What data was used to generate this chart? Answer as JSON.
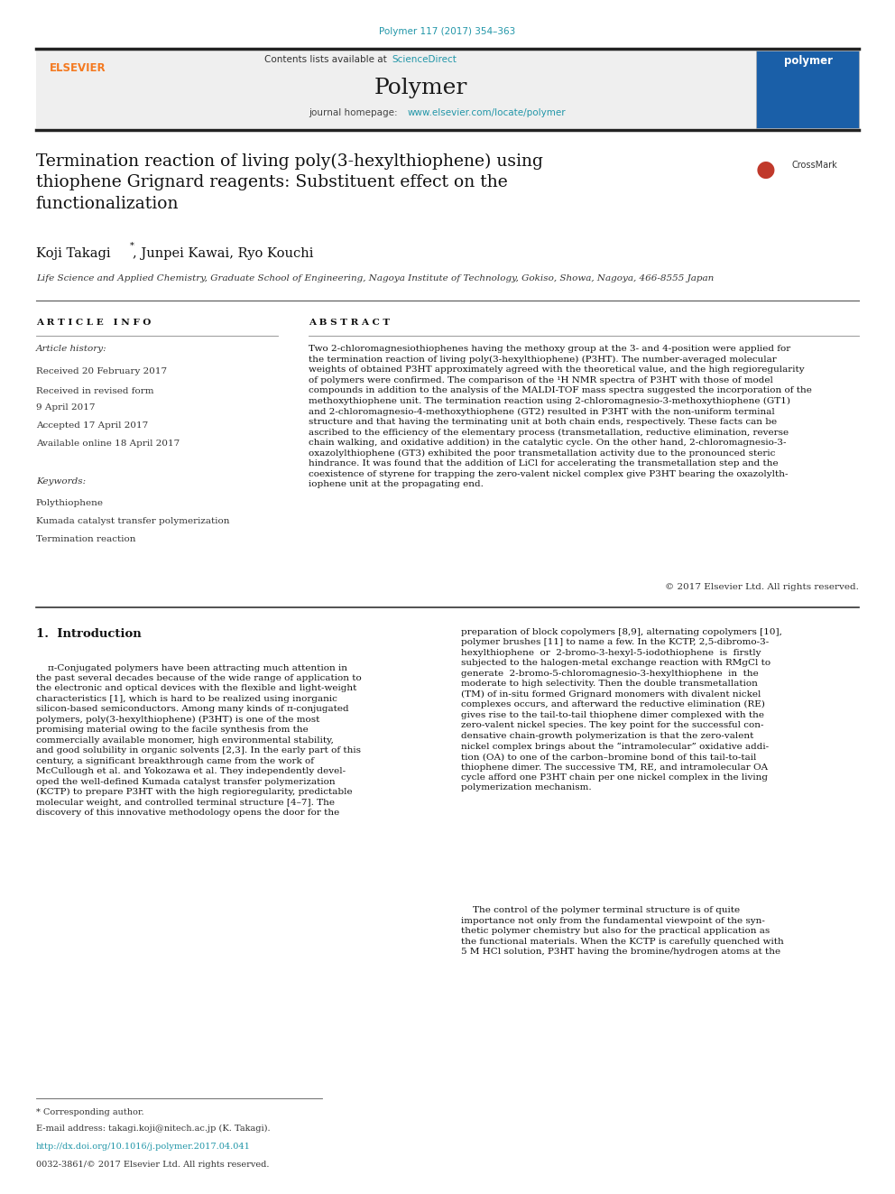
{
  "page_width": 9.92,
  "page_height": 13.23,
  "bg_color": "#ffffff",
  "journal_ref": "Polymer 117 (2017) 354–363",
  "journal_ref_color": "#2196a8",
  "journal_name": "Polymer",
  "contents_text": "Contents lists available at ",
  "sciencedirect_text": "ScienceDirect",
  "sciencedirect_color": "#2196a8",
  "homepage_text": "journal homepage: ",
  "homepage_url": "www.elsevier.com/locate/polymer",
  "homepage_color": "#2196a8",
  "header_bg": "#efefef",
  "title": "Termination reaction of living poly(3-hexylthiophene) using\nthiophene Grignard reagents: Substituent effect on the\nfunctionalization",
  "authors": "Koji Takagi",
  "authors2": ", Junpei Kawai, Ryo Kouchi",
  "affiliation": "Life Science and Applied Chemistry, Graduate School of Engineering, Nagoya Institute of Technology, Gokiso, Showa, Nagoya, 466-8555 Japan",
  "article_info_title": "A R T I C L E   I N F O",
  "history_title": "Article history:",
  "received": "Received 20 February 2017",
  "received_revised": "Received in revised form",
  "april9": "9 April 2017",
  "accepted": "Accepted 17 April 2017",
  "available": "Available online 18 April 2017",
  "keywords_title": "Keywords:",
  "keyword1": "Polythiophene",
  "keyword2": "Kumada catalyst transfer polymerization",
  "keyword3": "Termination reaction",
  "abstract_title": "A B S T R A C T",
  "abstract_text": "Two 2-chloromagnesiothiophenes having the methoxy group at the 3- and 4-position were applied for\nthe termination reaction of living poly(3-hexylthiophene) (P3HT). The number-averaged molecular\nweights of obtained P3HT approximately agreed with the theoretical value, and the high regioregularity\nof polymers were confirmed. The comparison of the ¹H NMR spectra of P3HT with those of model\ncompounds in addition to the analysis of the MALDI-TOF mass spectra suggested the incorporation of the\nmethoxythiophene unit. The termination reaction using 2-chloromagnesio-3-methoxythiophene (GT1)\nand 2-chloromagnesio-4-methoxythiophene (GT2) resulted in P3HT with the non-uniform terminal\nstructure and that having the terminating unit at both chain ends, respectively. These facts can be\nascribed to the efficiency of the elementary process (transmetallation, reductive elimination, reverse\nchain walking, and oxidative addition) in the catalytic cycle. On the other hand, 2-chloromagnesio-3-\noxazolylthiophene (GT3) exhibited the poor transmetallation activity due to the pronounced steric\nhindrance. It was found that the addition of LiCl for accelerating the transmetallation step and the\ncoexistence of styrene for trapping the zero-valent nickel complex give P3HT bearing the oxazolylth-\niophene unit at the propagating end.",
  "copyright": "© 2017 Elsevier Ltd. All rights reserved.",
  "intro_title": "1.  Introduction",
  "intro_col1": "    π-Conjugated polymers have been attracting much attention in\nthe past several decades because of the wide range of application to\nthe electronic and optical devices with the flexible and light-weight\ncharacteristics [1], which is hard to be realized using inorganic\nsilicon-based semiconductors. Among many kinds of π-conjugated\npolymers, poly(3-hexylthiophene) (P3HT) is one of the most\npromising material owing to the facile synthesis from the\ncommercially available monomer, high environmental stability,\nand good solubility in organic solvents [2,3]. In the early part of this\ncentury, a significant breakthrough came from the work of\nMcCullough et al. and Yokozawa et al. They independently devel-\noped the well-defined Kumada catalyst transfer polymerization\n(KCTP) to prepare P3HT with the high regioregularity, predictable\nmolecular weight, and controlled terminal structure [4–7]. The\ndiscovery of this innovative methodology opens the door for the",
  "intro_col2": "preparation of block copolymers [8,9], alternating copolymers [10],\npolymer brushes [11] to name a few. In the KCTP, 2,5-dibromo-3-\nhexylthiophene  or  2-bromo-3-hexyl-5-iodothiophene  is  firstly\nsubjected to the halogen-metal exchange reaction with RMgCl to\ngenerate  2-bromo-5-chloromagnesio-3-hexylthiophene  in  the\nmoderate to high selectivity. Then the double transmetallation\n(TM) of in-situ formed Grignard monomers with divalent nickel\ncomplexes occurs, and afterward the reductive elimination (RE)\ngives rise to the tail-to-tail thiophene dimer complexed with the\nzero-valent nickel species. The key point for the successful con-\ndensative chain-growth polymerization is that the zero-valent\nnickel complex brings about the “intramolecular” oxidative addi-\ntion (OA) to one of the carbon–bromine bond of this tail-to-tail\nthiophene dimer. The successive TM, RE, and intramolecular OA\ncycle afford one P3HT chain per one nickel complex in the living\npolymerization mechanism.",
  "para2_col2": "    The control of the polymer terminal structure is of quite\nimportance not only from the fundamental viewpoint of the syn-\nthetic polymer chemistry but also for the practical application as\nthe functional materials. When the KCTP is carefully quenched with\n5 M HCl solution, P3HT having the bromine/hydrogen atoms at the",
  "footnote_star": "* Corresponding author.",
  "footnote_email": "E-mail address: takagi.koji@nitech.ac.jp (K. Takagi).",
  "footnote_doi": "http://dx.doi.org/10.1016/j.polymer.2017.04.041",
  "footnote_issn": "0032-3861/© 2017 Elsevier Ltd. All rights reserved.",
  "elsevier_color": "#f47920",
  "link_color": "#2196a8"
}
